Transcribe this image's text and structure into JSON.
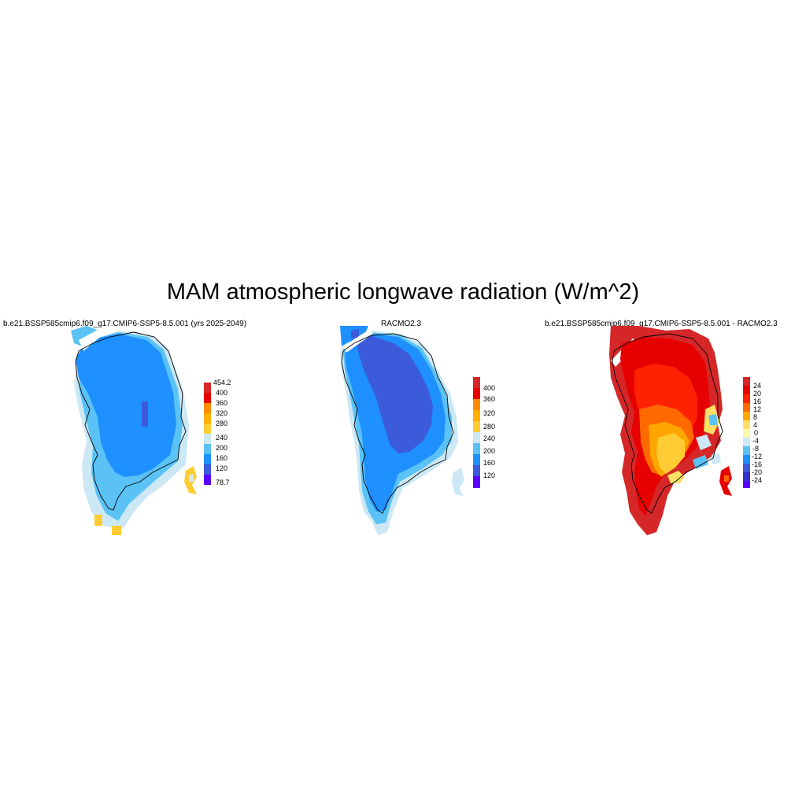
{
  "title": "MAM atmospheric longwave radiation (W/m^2)",
  "panels": [
    {
      "title": "b.e21.BSSP585cmip6.f09_g17.CMIP6-SSP5-8.5.001 (yrs 2025-2049)",
      "colorbar": {
        "labels": [
          "454.2",
          "400",
          "360",
          "320",
          "280",
          "240",
          "200",
          "160",
          "120",
          "78.7"
        ],
        "colors": [
          "#d62728",
          "#e60000",
          "#ff2200",
          "#ff8c00",
          "#ffcc33",
          "#cce8f5",
          "#5bc2f5",
          "#1e90ff",
          "#3b5bdb",
          "#5a00ff"
        ]
      }
    },
    {
      "title": "RACMO2.3",
      "colorbar": {
        "labels": [
          "400",
          "360",
          "320",
          "280",
          "240",
          "200",
          "160",
          "120"
        ],
        "colors": [
          "#d62728",
          "#e60000",
          "#ff8c00",
          "#ffcc33",
          "#cce8f5",
          "#5bc2f5",
          "#1e90ff",
          "#3b5bdb",
          "#5a00ff"
        ]
      }
    },
    {
      "title": "b.e21.BSSP585cmip6.f09_g17.CMIP6-SSP5-8.5.001 - RACMO2.3",
      "colorbar": {
        "labels": [
          "24",
          "20",
          "16",
          "12",
          "8",
          "4",
          "0",
          "-4",
          "-8",
          "-12",
          "-16",
          "-20",
          "-24"
        ],
        "colors": [
          "#d62728",
          "#e60000",
          "#ff2200",
          "#ff6a00",
          "#ffa500",
          "#ffe066",
          "#fff9b0",
          "#cce8f5",
          "#5bc2f5",
          "#1e90ff",
          "#3b5bdb",
          "#3333cc",
          "#5a00ff"
        ]
      }
    }
  ]
}
